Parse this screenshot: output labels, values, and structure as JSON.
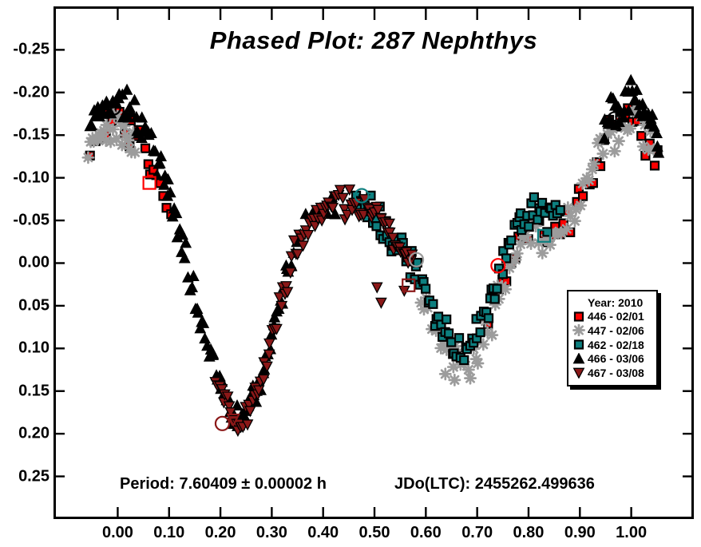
{
  "chart_data": {
    "type": "scatter",
    "title": "Phased Plot: 287 Nephthys",
    "xlabel": "",
    "ylabel": "",
    "x_axis": {
      "min": -0.1204,
      "max": 1.1172,
      "tick_values": [
        0.0,
        0.1,
        0.2,
        0.3,
        0.4,
        0.5,
        0.6,
        0.7,
        0.8,
        0.9,
        1.0
      ],
      "tick_labels": [
        "0.00",
        "0.10",
        "0.20",
        "0.30",
        "0.40",
        "0.50",
        "0.60",
        "0.70",
        "0.80",
        "0.90",
        "1.00"
      ]
    },
    "y_axis": {
      "min": -0.2981,
      "max": 0.2972,
      "inverted_magnitude": true,
      "tick_values": [
        -0.25,
        -0.2,
        -0.15,
        -0.1,
        -0.05,
        0.0,
        0.05,
        0.1,
        0.15,
        0.2,
        0.25
      ],
      "tick_labels": [
        "-0.25",
        "-0.20",
        "-0.15",
        "-0.10",
        "-0.05",
        "0.00",
        "0.05",
        "0.10",
        "0.15",
        "0.20",
        "0.25"
      ]
    },
    "legend": {
      "title": "Year: 2010",
      "position": "right-middle"
    },
    "annotations": {
      "period": "Period: 7.60409 ± 0.00002 h",
      "jdo": "JDo(LTC): 2455262.499636"
    },
    "curve_anchors": [
      [
        0.0,
        -0.193
      ],
      [
        0.02,
        -0.176
      ],
      [
        0.04,
        -0.158
      ],
      [
        0.06,
        -0.14
      ],
      [
        0.08,
        -0.116
      ],
      [
        0.1,
        -0.078
      ],
      [
        0.12,
        -0.032
      ],
      [
        0.14,
        0.018
      ],
      [
        0.16,
        0.065
      ],
      [
        0.18,
        0.11
      ],
      [
        0.2,
        0.15
      ],
      [
        0.22,
        0.178
      ],
      [
        0.235,
        0.19
      ],
      [
        0.25,
        0.184
      ],
      [
        0.27,
        0.156
      ],
      [
        0.29,
        0.112
      ],
      [
        0.31,
        0.062
      ],
      [
        0.33,
        0.016
      ],
      [
        0.35,
        -0.02
      ],
      [
        0.37,
        -0.042
      ],
      [
        0.39,
        -0.056
      ],
      [
        0.41,
        -0.064
      ],
      [
        0.43,
        -0.069
      ],
      [
        0.45,
        -0.071
      ],
      [
        0.47,
        -0.068
      ],
      [
        0.49,
        -0.061
      ],
      [
        0.51,
        -0.049
      ],
      [
        0.53,
        -0.036
      ],
      [
        0.55,
        -0.02
      ],
      [
        0.57,
        -0.002
      ],
      [
        0.59,
        0.021
      ],
      [
        0.61,
        0.048
      ],
      [
        0.63,
        0.074
      ],
      [
        0.65,
        0.092
      ],
      [
        0.665,
        0.1
      ],
      [
        0.68,
        0.097
      ],
      [
        0.7,
        0.081
      ],
      [
        0.72,
        0.052
      ],
      [
        0.74,
        0.016
      ],
      [
        0.76,
        -0.016
      ],
      [
        0.78,
        -0.041
      ],
      [
        0.8,
        -0.06
      ],
      [
        0.815,
        -0.064
      ],
      [
        0.83,
        -0.056
      ],
      [
        0.845,
        -0.049
      ],
      [
        0.86,
        -0.056
      ],
      [
        0.88,
        -0.076
      ],
      [
        0.9,
        -0.1
      ],
      [
        0.92,
        -0.126
      ],
      [
        0.94,
        -0.15
      ],
      [
        0.96,
        -0.17
      ],
      [
        0.98,
        -0.183
      ],
      [
        1.0,
        -0.193
      ]
    ],
    "series": [
      {
        "name": "446",
        "label": "446 - 02/01",
        "marker": "square",
        "color": "#ff0000",
        "outline": "#000000",
        "offset": 0.022,
        "spread": 0.013,
        "seed": 101,
        "segments": [
          [
            -0.055,
            0.105,
            22
          ],
          [
            0.72,
            1.055,
            42
          ]
        ],
        "extra_points": []
      },
      {
        "name": "447",
        "label": "447 - 02/06",
        "marker": "asterisk",
        "color": "#9c9c9c",
        "outline": "#9c9c9c",
        "offset": 0.024,
        "spread": 0.013,
        "seed": 202,
        "segments": [
          [
            -0.058,
            0.035,
            26
          ],
          [
            0.585,
            1.048,
            80
          ]
        ],
        "extra_points": [
          [
            0.638,
            0.13
          ],
          [
            0.656,
            0.137
          ]
        ]
      },
      {
        "name": "462",
        "label": "462 - 02/18",
        "marker": "square",
        "color": "#0d7f7f",
        "outline": "#000000",
        "offset": 0.0,
        "spread": 0.011,
        "seed": 303,
        "segments": [
          [
            0.455,
            0.862,
            102
          ]
        ],
        "extra_points": []
      },
      {
        "name": "466",
        "label": "466 - 03/06",
        "marker": "triangle-up",
        "color": "#000000",
        "outline": "#000000",
        "offset": -0.005,
        "spread": 0.012,
        "seed": 404,
        "segments": [
          [
            -0.055,
            0.345,
            118
          ],
          [
            0.345,
            0.43,
            10
          ],
          [
            0.945,
            1.056,
            36
          ]
        ],
        "extra_points": []
      },
      {
        "name": "467",
        "label": "467 - 03/08",
        "marker": "triangle-down",
        "color": "#8b1818",
        "outline": "#000000",
        "offset": 0.0,
        "spread": 0.011,
        "seed": 505,
        "segments": [
          [
            0.19,
            0.575,
            110
          ]
        ],
        "extra_points": [
          [
            0.505,
            0.028
          ],
          [
            0.513,
            0.046
          ],
          [
            0.558,
            0.032
          ]
        ]
      }
    ],
    "open_markers": [
      {
        "shape": "circle",
        "color": "#000000",
        "phase": -0.008,
        "mag": -0.182
      },
      {
        "shape": "square",
        "color": "#ff0000",
        "phase": 0.0617,
        "mag": -0.094
      },
      {
        "shape": "circle",
        "color": "#8b1818",
        "phase": 0.2037,
        "mag": 0.188
      },
      {
        "shape": "triangle-down",
        "color": "#8b1818",
        "phase": 0.2253,
        "mag": 0.183
      },
      {
        "shape": "circle",
        "color": "#0d7f7f",
        "phase": 0.4752,
        "mag": -0.079
      },
      {
        "shape": "circle",
        "color": "#9c9c9c",
        "phase": 0.5817,
        "mag": -0.004
      },
      {
        "shape": "square",
        "color": "#8b1818",
        "phase": 0.5664,
        "mag": 0.026
      },
      {
        "shape": "circle",
        "color": "#ff0000",
        "phase": 0.7407,
        "mag": 0.003
      },
      {
        "shape": "square",
        "color": "#0d7f7f",
        "phase": 0.8302,
        "mag": -0.032
      },
      {
        "shape": "circle",
        "color": "#000000",
        "phase": 0.9676,
        "mag": -0.169
      }
    ]
  }
}
